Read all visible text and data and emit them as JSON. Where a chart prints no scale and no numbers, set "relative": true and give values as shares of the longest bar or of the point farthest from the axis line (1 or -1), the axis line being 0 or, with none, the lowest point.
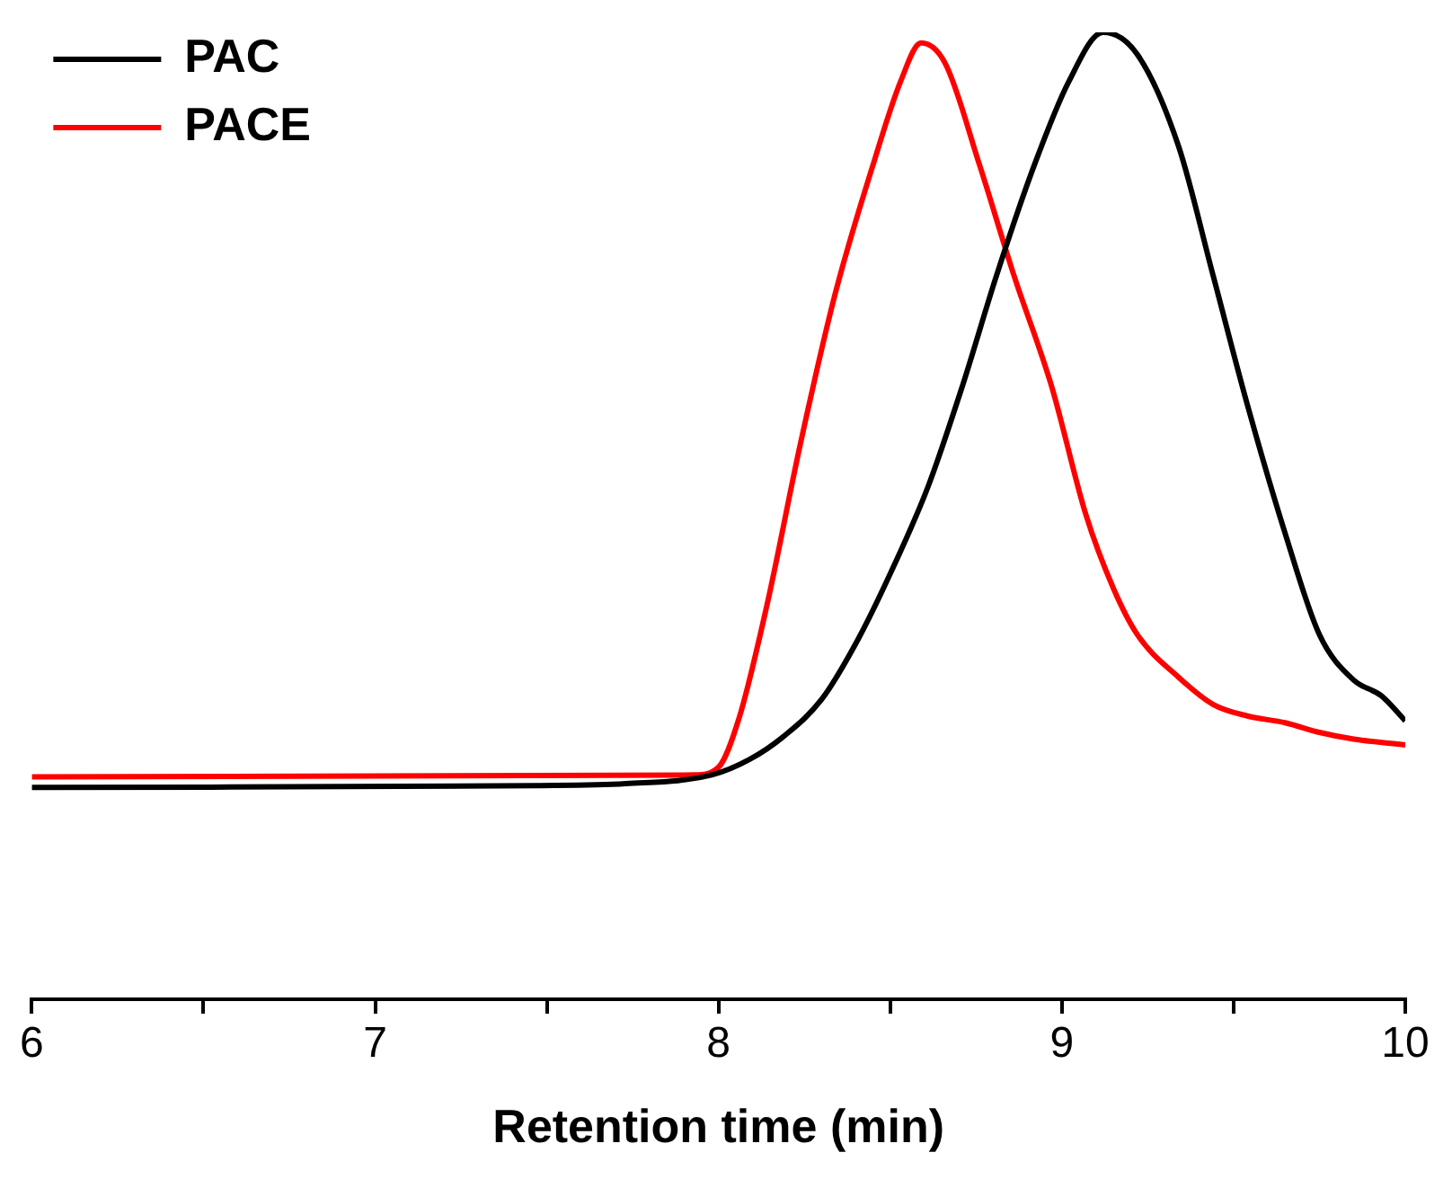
{
  "chart_data": {
    "type": "line",
    "relative": true,
    "xlabel": "Retention time (min)",
    "xlim": [
      6,
      10
    ],
    "xticks": [
      6,
      {
        "value": 6.5,
        "label": null
      },
      7,
      {
        "value": 7.5,
        "label": null
      },
      8,
      {
        "value": 8.5,
        "label": null
      },
      9,
      {
        "value": 9.5,
        "label": null
      },
      10
    ],
    "legend": "top left",
    "marker": "none",
    "line_style": "solid",
    "series": [
      {
        "name": "PAC",
        "color": "#000000",
        "x": [
          6,
          7.47,
          7.73,
          7.98,
          8.09,
          8.19,
          8.3,
          8.4,
          8.5,
          8.61,
          8.71,
          8.81,
          8.92,
          9.02,
          9.12,
          9.22,
          9.34,
          9.44,
          9.54,
          9.65,
          9.75,
          9.85,
          9.93,
          10
        ],
        "values": [
          0.219,
          0.221,
          0.223,
          0.232,
          0.248,
          0.272,
          0.31,
          0.368,
          0.44,
          0.53,
          0.634,
          0.749,
          0.863,
          0.949,
          1,
          0.977,
          0.882,
          0.749,
          0.615,
          0.482,
          0.377,
          0.33,
          0.314,
          0.288
        ]
      },
      {
        "name": "PACE",
        "color": "#ff0000",
        "x": [
          6,
          7.93,
          8,
          8.06,
          8.14,
          8.24,
          8.34,
          8.45,
          8.53,
          8.59,
          8.66,
          8.76,
          8.86,
          8.97,
          9.07,
          9.15,
          9.22,
          9.34,
          9.44,
          9.54,
          9.65,
          9.75,
          9.85,
          10
        ],
        "values": [
          0.23,
          0.232,
          0.24,
          0.291,
          0.406,
          0.577,
          0.73,
          0.863,
          0.949,
          0.989,
          0.968,
          0.863,
          0.749,
          0.634,
          0.501,
          0.425,
          0.377,
          0.333,
          0.305,
          0.293,
          0.286,
          0.276,
          0.269,
          0.263
        ]
      }
    ]
  }
}
